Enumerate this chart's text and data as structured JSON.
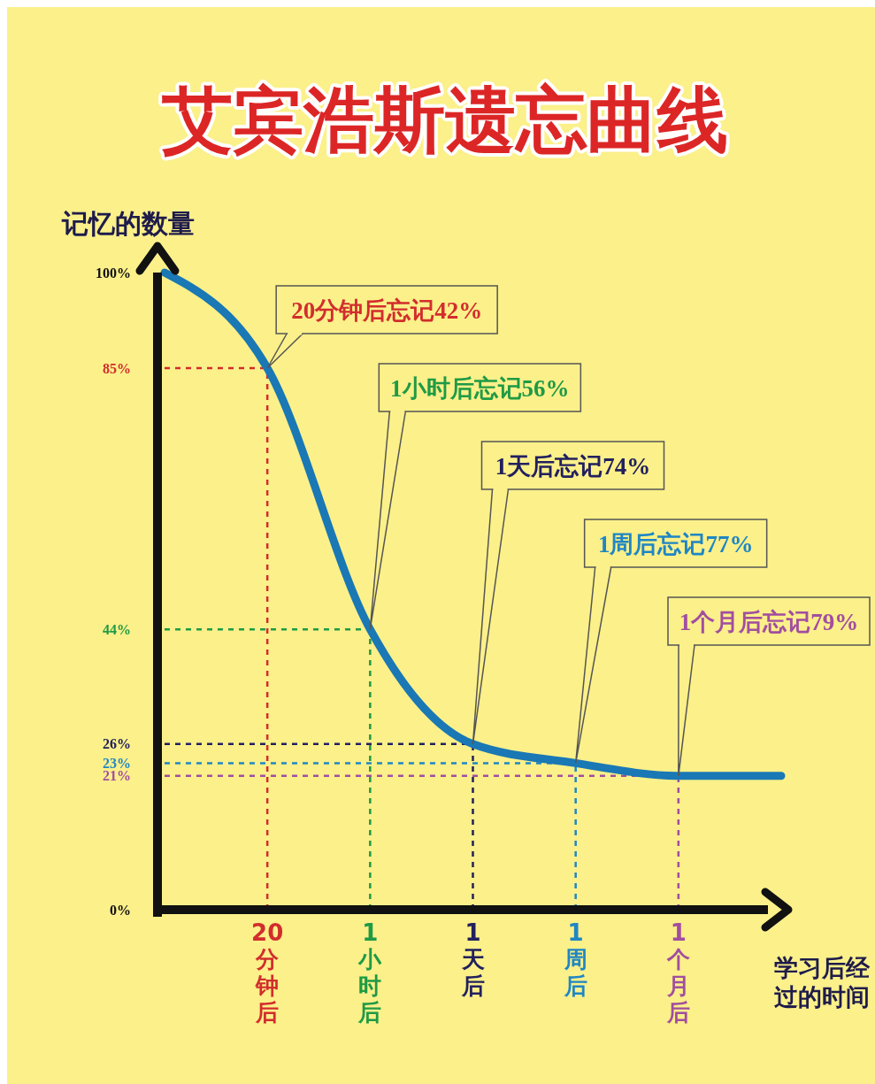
{
  "chart_data": {
    "type": "line",
    "title": "艾宾浩斯遗忘曲线",
    "xlabel": "学习后经过的时间",
    "ylabel": "记忆的数量",
    "categories": [
      null,
      "20分钟后",
      "1小时后",
      "1天后",
      "1周后",
      "1个月后",
      null
    ],
    "series": [
      {
        "color": "#1a78b4",
        "values": [
          100,
          85,
          44,
          26,
          23,
          21,
          21
        ],
        "colors": [
          null,
          "#d22d2d",
          "#1f9a45",
          "#22205e",
          "#1f86c4",
          "#a24ea0",
          null
        ]
      }
    ],
    "ylim": [
      0,
      100
    ],
    "ref_lines": [
      {
        "axis": "y",
        "value": 85,
        "color": "#d22d2d",
        "line_style": "dashed"
      },
      {
        "axis": "x",
        "value": "20分钟后",
        "color": "#d22d2d",
        "line_style": "dashed"
      },
      {
        "axis": "y",
        "value": 44,
        "color": "#1f9a45",
        "line_style": "dashed"
      },
      {
        "axis": "x",
        "value": "1小时后",
        "color": "#1f9a45",
        "line_style": "dashed"
      },
      {
        "axis": "y",
        "value": 26,
        "color": "#22205e",
        "line_style": "dashed"
      },
      {
        "axis": "x",
        "value": "1天后",
        "color": "#22205e",
        "line_style": "dashed"
      },
      {
        "axis": "y",
        "value": 23,
        "color": "#1f86c4",
        "line_style": "dashed"
      },
      {
        "axis": "x",
        "value": "1周后",
        "color": "#1f86c4",
        "line_style": "dashed"
      },
      {
        "axis": "y",
        "value": 21,
        "color": "#a24ea0",
        "line_style": "dashed"
      },
      {
        "axis": "x",
        "value": "1个月后",
        "color": "#a24ea0",
        "line_style": "dashed"
      }
    ],
    "yticks": [
      {
        "value": 0,
        "label": "0%"
      },
      {
        "value": 21,
        "label": "21%"
      },
      {
        "value": 23,
        "label": "23%"
      },
      {
        "value": 26,
        "label": "26%"
      },
      {
        "value": 44,
        "label": "44%"
      },
      {
        "value": 85,
        "label": "85%"
      },
      {
        "value": 100,
        "label": "100%"
      }
    ],
    "annotations": [
      {
        "text": "20分钟后忘记42%",
        "x": "20分钟后",
        "y": 85
      },
      {
        "text": "1小时后忘记56%",
        "x": "1小时后",
        "y": 44
      },
      {
        "text": "1天后忘记74%",
        "x": "1天后",
        "y": 26
      },
      {
        "text": "1周后忘记77%",
        "x": "1周后",
        "y": 23
      },
      {
        "text": "1个月后忘记79%",
        "x": "1个月后",
        "y": 21
      }
    ]
  }
}
